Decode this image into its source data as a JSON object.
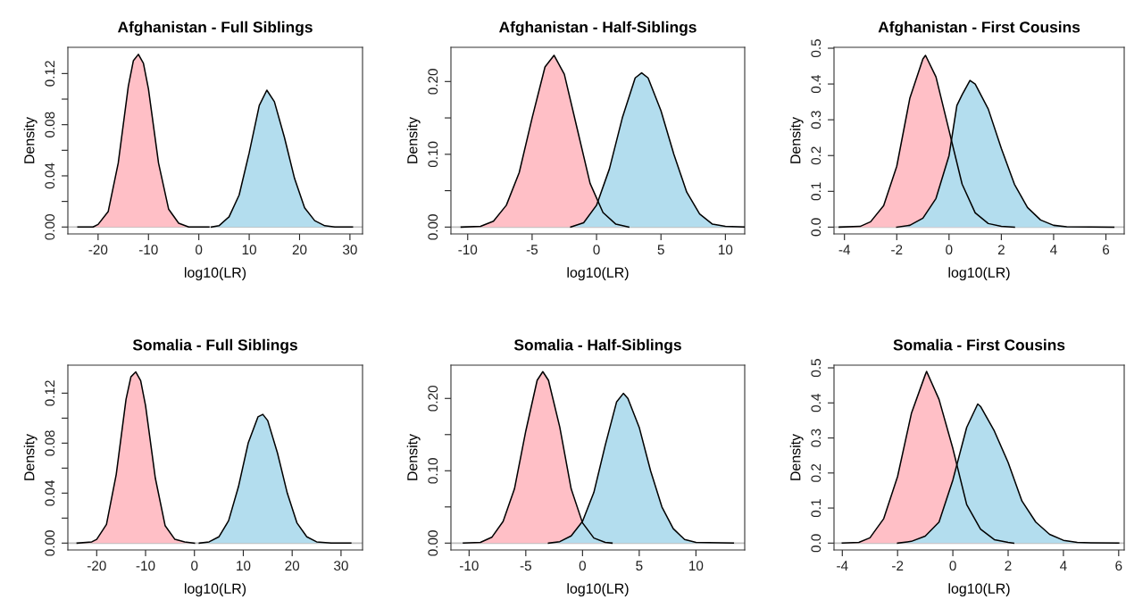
{
  "chart_data": [
    {
      "type": "area",
      "title": "Afghanistan - Full Siblings",
      "xlabel": "log10(LR)",
      "ylabel": "Density",
      "xlim": [
        -26.0,
        32.5
      ],
      "ylim": [
        -0.0054,
        0.1405
      ],
      "xticks": [
        -20,
        -10,
        0,
        10,
        20,
        30
      ],
      "yticks": [
        {
          "value": 0,
          "label": "0.00"
        },
        {
          "value": 0.02,
          "label": null
        },
        {
          "value": 0.04,
          "label": "0.04"
        },
        {
          "value": 0.06,
          "label": null
        },
        {
          "value": 0.08,
          "label": "0.08"
        },
        {
          "value": 0.1,
          "label": null
        },
        {
          "value": 0.12,
          "label": "0.12"
        }
      ],
      "ref_lines": [
        {
          "axis": "y",
          "value": 0,
          "color": "#bebebe"
        }
      ],
      "grid": false,
      "legend": false,
      "series": [
        {
          "color": "#ffbfc6",
          "x": [
            -24,
            -21,
            -20,
            -18,
            -16,
            -14,
            -13,
            -12,
            -11,
            -10,
            -8,
            -6,
            -4,
            -2,
            0,
            2
          ],
          "values": [
            0,
            0,
            0.002,
            0.012,
            0.05,
            0.11,
            0.13,
            0.135,
            0.128,
            0.108,
            0.05,
            0.014,
            0.003,
            0,
            0,
            0
          ]
        },
        {
          "color": "#b3ddee",
          "x": [
            2.5,
            4,
            6,
            8,
            10,
            12,
            13.5,
            15,
            17,
            19,
            21,
            23,
            25,
            27,
            30.5
          ],
          "values": [
            0,
            0.001,
            0.008,
            0.025,
            0.058,
            0.095,
            0.107,
            0.098,
            0.07,
            0.038,
            0.015,
            0.005,
            0.001,
            0,
            0
          ]
        }
      ]
    },
    {
      "type": "area",
      "title": "Afghanistan - Half-Siblings",
      "xlabel": "log10(LR)",
      "ylabel": "Density",
      "xlim": [
        -11.3,
        11.5
      ],
      "ylim": [
        -0.0094,
        0.247
      ],
      "xticks": [
        -10,
        -5,
        0,
        5,
        10
      ],
      "yticks": [
        {
          "value": 0,
          "label": "0.00"
        },
        {
          "value": 0.05,
          "label": null
        },
        {
          "value": 0.1,
          "label": "0.10"
        },
        {
          "value": 0.15,
          "label": null
        },
        {
          "value": 0.2,
          "label": "0.20"
        }
      ],
      "ref_lines": [
        {
          "axis": "y",
          "value": 0,
          "color": "#bebebe"
        }
      ],
      "grid": false,
      "legend": false,
      "series": [
        {
          "color": "#ffbfc6",
          "x": [
            -10.5,
            -9,
            -8,
            -7,
            -6,
            -5,
            -4,
            -3.3,
            -2.5,
            -1.5,
            -0.5,
            0.5,
            1.5,
            2.5
          ],
          "values": [
            0,
            0.001,
            0.008,
            0.03,
            0.075,
            0.15,
            0.22,
            0.236,
            0.21,
            0.135,
            0.06,
            0.02,
            0.004,
            0
          ]
        },
        {
          "color": "#b3ddee",
          "x": [
            -2,
            -1,
            0,
            1,
            2,
            3,
            3.5,
            4,
            5,
            6,
            7,
            8,
            9,
            10,
            11.5
          ],
          "values": [
            0,
            0.006,
            0.03,
            0.08,
            0.15,
            0.205,
            0.212,
            0.205,
            0.16,
            0.1,
            0.048,
            0.018,
            0.004,
            0.001,
            0
          ]
        }
      ]
    },
    {
      "type": "area",
      "title": "Afghanistan - First Cousins",
      "xlabel": "log10(LR)",
      "ylabel": "Density",
      "xlim": [
        -4.4,
        6.7
      ],
      "ylim": [
        -0.019,
        0.5025
      ],
      "xticks": [
        -4,
        -2,
        0,
        2,
        4,
        6
      ],
      "yticks": [
        {
          "value": 0,
          "label": "0.0"
        },
        {
          "value": 0.1,
          "label": "0.1"
        },
        {
          "value": 0.2,
          "label": "0.2"
        },
        {
          "value": 0.3,
          "label": "0.3"
        },
        {
          "value": 0.4,
          "label": "0.4"
        },
        {
          "value": 0.5,
          "label": "0.5"
        }
      ],
      "ref_lines": [
        {
          "axis": "y",
          "value": 0,
          "color": "#bebebe"
        }
      ],
      "grid": false,
      "legend": false,
      "series": [
        {
          "color": "#ffbfc6",
          "x": [
            -4.2,
            -3.4,
            -3,
            -2.5,
            -2,
            -1.5,
            -1,
            -0.9,
            -0.5,
            0,
            0.5,
            1,
            1.5,
            2,
            2.5
          ],
          "values": [
            0,
            0.002,
            0.015,
            0.06,
            0.17,
            0.36,
            0.47,
            0.48,
            0.42,
            0.27,
            0.12,
            0.04,
            0.01,
            0.002,
            0
          ]
        },
        {
          "color": "#b3ddee",
          "x": [
            -2,
            -1.5,
            -1,
            -0.5,
            0,
            0.3,
            0.5,
            0.8,
            1,
            1.5,
            2,
            2.5,
            3,
            3.5,
            4,
            4.5,
            6.3
          ],
          "values": [
            0,
            0.005,
            0.025,
            0.08,
            0.2,
            0.34,
            0.37,
            0.41,
            0.4,
            0.33,
            0.22,
            0.12,
            0.055,
            0.02,
            0.005,
            0.001,
            0
          ]
        }
      ]
    },
    {
      "type": "area",
      "title": "Somalia - Full Siblings",
      "xlabel": "log10(LR)",
      "ylabel": "Density",
      "xlim": [
        -25.9,
        34.4
      ],
      "ylim": [
        -0.0055,
        0.1424
      ],
      "xticks": [
        -20,
        -10,
        0,
        10,
        20,
        30
      ],
      "yticks": [
        {
          "value": 0,
          "label": "0.00"
        },
        {
          "value": 0.02,
          "label": null
        },
        {
          "value": 0.04,
          "label": "0.04"
        },
        {
          "value": 0.06,
          "label": null
        },
        {
          "value": 0.08,
          "label": "0.08"
        },
        {
          "value": 0.1,
          "label": null
        },
        {
          "value": 0.12,
          "label": "0.12"
        }
      ],
      "ref_lines": [
        {
          "axis": "y",
          "value": 0,
          "color": "#bebebe"
        }
      ],
      "grid": false,
      "legend": false,
      "series": [
        {
          "color": "#ffbfc6",
          "x": [
            -24,
            -21,
            -20,
            -18,
            -16,
            -14,
            -13,
            -12,
            -11,
            -10,
            -8,
            -6,
            -4,
            -2,
            0
          ],
          "values": [
            0,
            0.001,
            0.003,
            0.015,
            0.055,
            0.115,
            0.133,
            0.137,
            0.13,
            0.11,
            0.052,
            0.014,
            0.003,
            0.001,
            0
          ]
        },
        {
          "color": "#b3ddee",
          "x": [
            1,
            3,
            5,
            7,
            9,
            11,
            13,
            14,
            15,
            17,
            19,
            21,
            23,
            25,
            28,
            32
          ],
          "values": [
            0,
            0.001,
            0.005,
            0.018,
            0.045,
            0.08,
            0.101,
            0.103,
            0.098,
            0.072,
            0.04,
            0.016,
            0.005,
            0.001,
            0,
            0
          ]
        }
      ]
    },
    {
      "type": "area",
      "title": "Somalia - Half-Siblings",
      "xlabel": "log10(LR)",
      "ylabel": "Density",
      "xlim": [
        -11.6,
        14.3
      ],
      "ylim": [
        -0.0095,
        0.246
      ],
      "xticks": [
        -10,
        -5,
        0,
        5,
        10
      ],
      "yticks": [
        {
          "value": 0,
          "label": "0.00"
        },
        {
          "value": 0.05,
          "label": null
        },
        {
          "value": 0.1,
          "label": "0.10"
        },
        {
          "value": 0.15,
          "label": null
        },
        {
          "value": 0.2,
          "label": "0.20"
        }
      ],
      "ref_lines": [
        {
          "axis": "y",
          "value": 0,
          "color": "#bebebe"
        }
      ],
      "grid": false,
      "legend": false,
      "series": [
        {
          "color": "#ffbfc6",
          "x": [
            -10.5,
            -9,
            -8,
            -7,
            -6,
            -5,
            -4,
            -3.5,
            -3,
            -2,
            -1,
            0,
            1,
            2,
            2.6
          ],
          "values": [
            0,
            0.001,
            0.008,
            0.03,
            0.075,
            0.155,
            0.225,
            0.237,
            0.225,
            0.16,
            0.075,
            0.028,
            0.007,
            0.001,
            0
          ]
        },
        {
          "color": "#b3ddee",
          "x": [
            -3,
            -2,
            -1,
            0,
            1,
            2,
            3,
            3.6,
            4,
            5,
            6,
            7,
            8,
            9,
            10,
            13.3
          ],
          "values": [
            0,
            0.002,
            0.01,
            0.03,
            0.07,
            0.135,
            0.195,
            0.207,
            0.2,
            0.16,
            0.1,
            0.05,
            0.02,
            0.005,
            0.001,
            0
          ]
        }
      ]
    },
    {
      "type": "area",
      "title": "Somalia - First Cousins",
      "xlabel": "log10(LR)",
      "ylabel": "Density",
      "xlim": [
        -4.3,
        6.2
      ],
      "ylim": [
        -0.0196,
        0.5077
      ],
      "xticks": [
        -4,
        -2,
        0,
        2,
        4,
        6
      ],
      "yticks": [
        {
          "value": 0,
          "label": "0.0"
        },
        {
          "value": 0.1,
          "label": "0.1"
        },
        {
          "value": 0.2,
          "label": "0.2"
        },
        {
          "value": 0.3,
          "label": "0.3"
        },
        {
          "value": 0.4,
          "label": "0.4"
        },
        {
          "value": 0.5,
          "label": "0.5"
        }
      ],
      "ref_lines": [
        {
          "axis": "y",
          "value": 0,
          "color": "#bebebe"
        }
      ],
      "grid": false,
      "legend": false,
      "series": [
        {
          "color": "#ffbfc6",
          "x": [
            -4,
            -3.4,
            -3,
            -2.5,
            -2,
            -1.5,
            -1,
            -0.95,
            -0.5,
            0,
            0.5,
            1,
            1.5,
            2,
            2.2
          ],
          "values": [
            0,
            0.002,
            0.015,
            0.07,
            0.19,
            0.37,
            0.48,
            0.49,
            0.41,
            0.27,
            0.11,
            0.04,
            0.01,
            0.002,
            0
          ]
        },
        {
          "color": "#b3ddee",
          "x": [
            -2,
            -1.5,
            -1,
            -0.5,
            0,
            0.5,
            0.9,
            1,
            1.5,
            2,
            2.5,
            3,
            3.5,
            4,
            4.5,
            5,
            6
          ],
          "values": [
            0,
            0.005,
            0.02,
            0.06,
            0.18,
            0.33,
            0.397,
            0.39,
            0.32,
            0.23,
            0.12,
            0.06,
            0.025,
            0.008,
            0.002,
            0.001,
            0
          ]
        }
      ]
    }
  ]
}
